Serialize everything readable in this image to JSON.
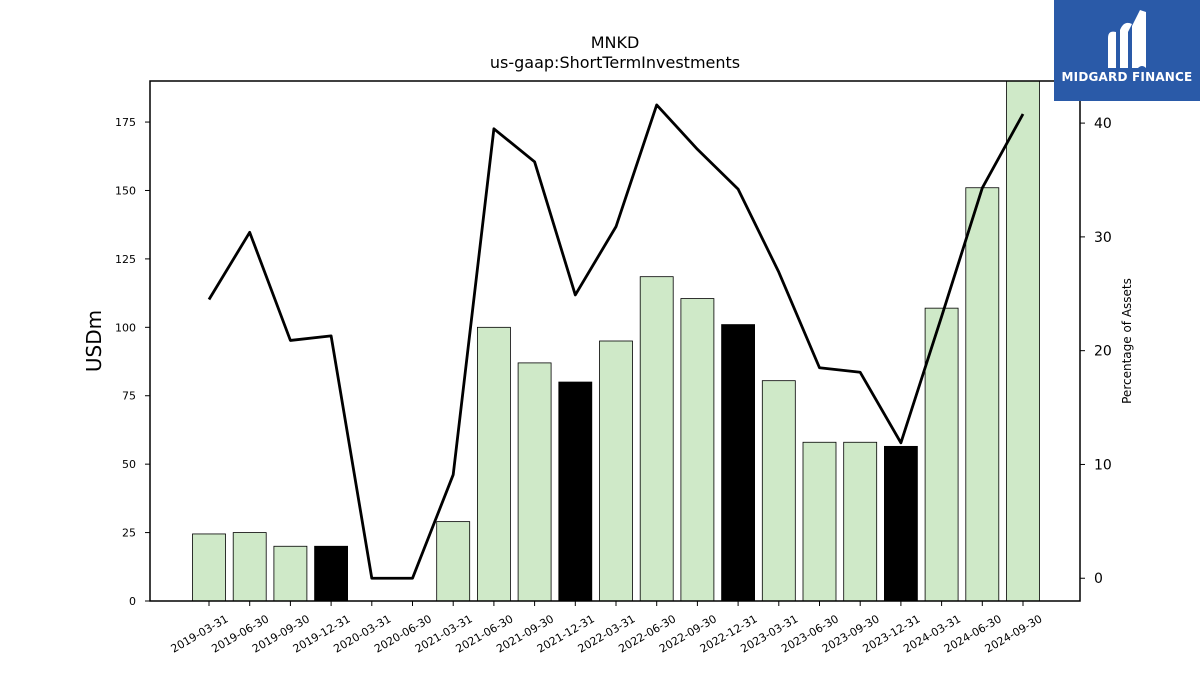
{
  "brand": {
    "name": "MIDGARD FINANCE",
    "accent": "#2a5aa8",
    "icon": "midgard-logo-icon"
  },
  "chart_data": {
    "type": "bar",
    "title": "MNKD",
    "subtitle": "us-gaap:ShortTermInvestments",
    "ylabel": "USDm",
    "y2label": "Percentage of Assets",
    "ylim": [
      0,
      190
    ],
    "y2lim": [
      -2.0,
      43.7
    ],
    "yticks": [
      0,
      25,
      50,
      75,
      100,
      125,
      150,
      175
    ],
    "y2ticks": [
      0,
      10,
      20,
      30,
      40
    ],
    "categories": [
      "2019-03-31",
      "2019-06-30",
      "2019-09-30",
      "2019-12-31",
      "2020-03-31",
      "2020-06-30",
      "2021-03-31",
      "2021-06-30",
      "2021-09-30",
      "2021-12-31",
      "2022-03-31",
      "2022-06-30",
      "2022-09-30",
      "2022-12-31",
      "2023-03-31",
      "2023-06-30",
      "2023-09-30",
      "2023-12-31",
      "2024-03-31",
      "2024-06-30",
      "2024-09-30"
    ],
    "series": [
      {
        "kind": "bar",
        "values": [
          24.5,
          25,
          20,
          20,
          0,
          0,
          29,
          100,
          87,
          80,
          95,
          118.5,
          110.5,
          101,
          80.5,
          58,
          58,
          56.5,
          107,
          151,
          190
        ],
        "year_end": [
          false,
          false,
          false,
          true,
          false,
          false,
          false,
          false,
          false,
          true,
          false,
          false,
          false,
          true,
          false,
          false,
          false,
          true,
          false,
          false,
          false
        ],
        "color": "#cfe9c8",
        "year_end_color": "#000000"
      },
      {
        "kind": "line",
        "axis": "right",
        "values": [
          24.5,
          30.4,
          20.9,
          21.3,
          0.0,
          0.0,
          9.1,
          39.5,
          36.6,
          24.9,
          30.9,
          41.6,
          37.7,
          34.2,
          26.9,
          18.5,
          18.1,
          11.9,
          23.0,
          34.3,
          40.8
        ],
        "color": "#000000"
      }
    ],
    "grid": false
  }
}
